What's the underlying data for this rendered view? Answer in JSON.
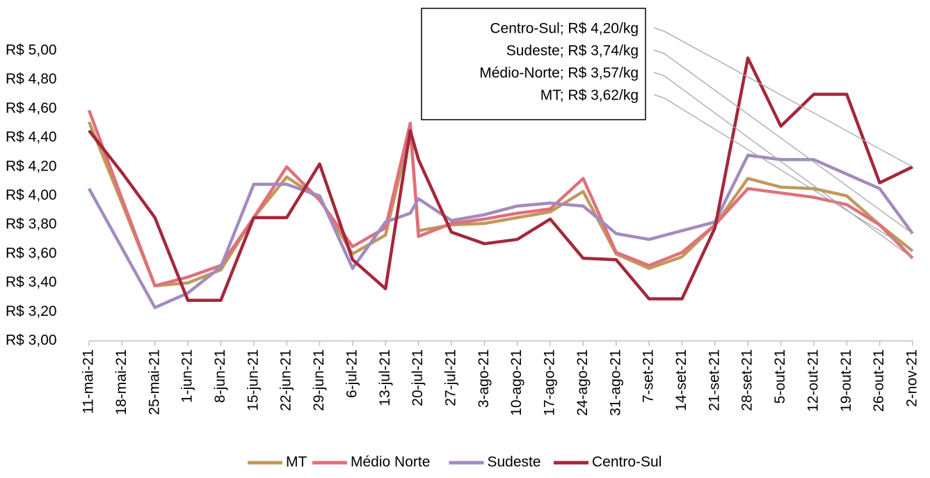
{
  "chart_data": {
    "type": "line",
    "categories": [
      "11-mai-21",
      "18-mai-21",
      "25-mai-21",
      "1-jun-21",
      "8-jun-21",
      "15-jun-21",
      "22-jun-21",
      "29-jun-21",
      "6-jul-21",
      "13-jul-21",
      null,
      "20-jul-21",
      "27-jul-21",
      "3-ago-21",
      "10-ago-21",
      "17-ago-21",
      "24-ago-21",
      "31-ago-21",
      "7-set-21",
      "14-set-21",
      "21-set-21",
      "28-set-21",
      "5-out-21",
      "12-out-21",
      "19-out-21",
      "26-out-21",
      "2-nov-21"
    ],
    "series": [
      {
        "name": "MT",
        "color": "#c09a5b",
        "values": [
          4.51,
          3.95,
          3.38,
          3.4,
          3.49,
          3.85,
          4.13,
          3.98,
          3.6,
          3.73,
          4.45,
          3.76,
          3.8,
          3.81,
          3.85,
          3.89,
          4.03,
          3.6,
          3.5,
          3.58,
          3.8,
          4.12,
          4.06,
          4.05,
          4.0,
          3.8,
          3.62
        ]
      },
      {
        "name": "Médio Norte",
        "color": "#e0707a",
        "values": [
          4.59,
          3.98,
          3.38,
          3.44,
          3.52,
          3.85,
          4.2,
          3.97,
          3.65,
          3.78,
          4.5,
          3.72,
          3.81,
          3.84,
          3.88,
          3.91,
          4.12,
          3.61,
          3.52,
          3.61,
          3.8,
          4.05,
          4.02,
          3.99,
          3.94,
          3.8,
          3.57
        ]
      },
      {
        "name": "Sudeste",
        "color": "#a28bbf",
        "values": [
          4.05,
          3.64,
          3.23,
          3.33,
          3.51,
          4.08,
          4.08,
          4.0,
          3.5,
          3.82,
          3.88,
          3.98,
          3.83,
          3.87,
          3.93,
          3.95,
          3.93,
          3.74,
          3.7,
          3.76,
          3.82,
          4.28,
          4.25,
          4.25,
          4.15,
          4.05,
          3.74
        ]
      },
      {
        "name": "Centro-Sul",
        "color": "#a3283a",
        "values": [
          4.45,
          4.16,
          3.85,
          3.28,
          3.28,
          3.85,
          3.85,
          4.22,
          3.56,
          3.36,
          4.45,
          4.25,
          3.75,
          3.67,
          3.7,
          3.84,
          3.57,
          3.56,
          3.29,
          3.29,
          3.78,
          4.95,
          4.48,
          4.7,
          4.7,
          4.09,
          4.2
        ]
      }
    ],
    "ylim": [
      3.0,
      5.0
    ],
    "yticks": [
      {
        "value": 3.0,
        "label": "R$ 3,00"
      },
      {
        "value": 3.2,
        "label": "R$ 3,20"
      },
      {
        "value": 3.4,
        "label": "R$ 3,40"
      },
      {
        "value": 3.6,
        "label": "R$ 3,60"
      },
      {
        "value": 3.8,
        "label": "R$ 3,80"
      },
      {
        "value": 4.0,
        "label": "R$ 4,00"
      },
      {
        "value": 4.2,
        "label": "R$ 4,20"
      },
      {
        "value": 4.4,
        "label": "R$ 4,40"
      },
      {
        "value": 4.6,
        "label": "R$ 4,60"
      },
      {
        "value": 4.8,
        "label": "R$ 4,80"
      },
      {
        "value": 5.0,
        "label": "R$ 5,00"
      }
    ],
    "annotations": [
      "Centro-Sul; R$ 4,20/kg",
      "Sudeste; R$ 3,74/kg",
      "Médio-Norte; R$ 3,57/kg",
      "MT; R$ 3,62/kg"
    ],
    "legend": "bottom"
  }
}
